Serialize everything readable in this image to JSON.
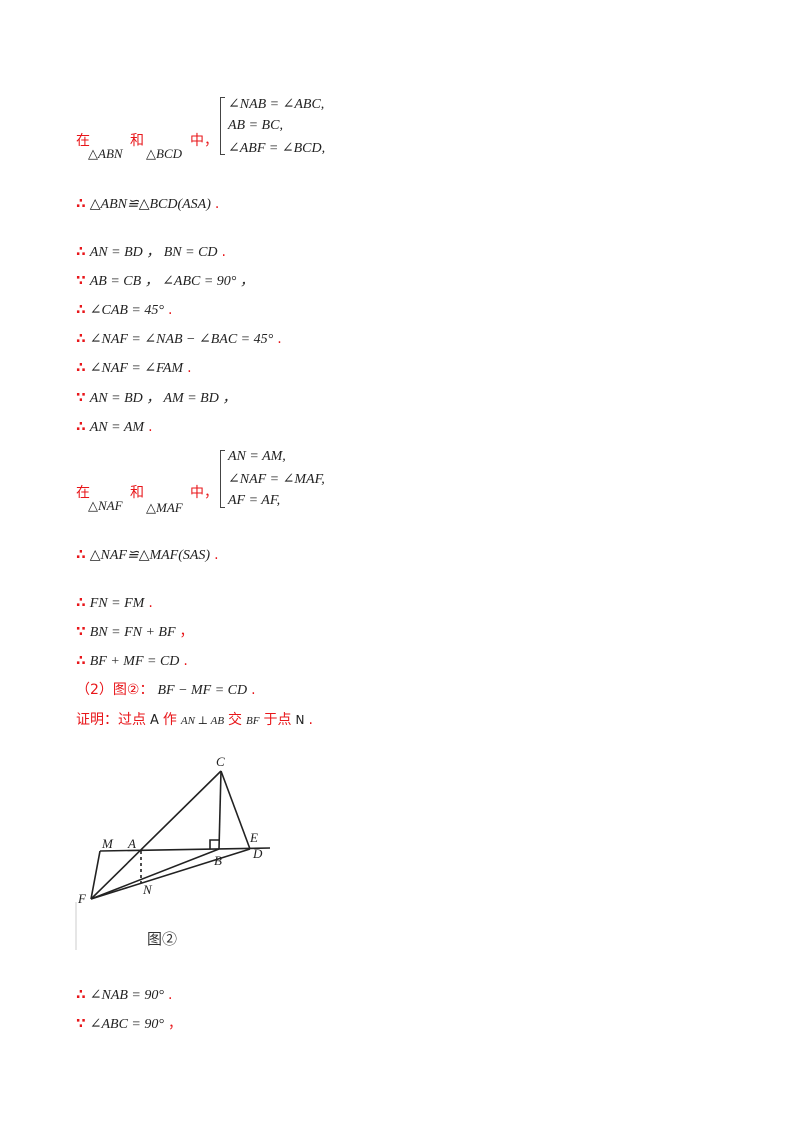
{
  "block1": {
    "zai": "在",
    "tri1": "△ABN",
    "he": "和",
    "tri2": "△BCD",
    "zhong": "中，",
    "cond1": "∠NAB = ∠ABC,",
    "cond2": "AB = BC,",
    "cond3": "∠ABF = ∠BCD,"
  },
  "concl1": {
    "sym": "∴",
    "text": "△ABN≌△BCD(ASA)",
    "end": "."
  },
  "lines1": [
    {
      "sym": "∴",
      "text": "AN = BD ，  BN = CD",
      "end": "."
    },
    {
      "sym": "∵",
      "text": "AB = CB ，  ∠ABC = 90° ，",
      "end": ""
    },
    {
      "sym": "∴",
      "text": "∠CAB = 45°",
      "end": "."
    },
    {
      "sym": "∴",
      "text": "∠NAF = ∠NAB − ∠BAC = 45°",
      "end": "."
    },
    {
      "sym": "∴",
      "text": "∠NAF = ∠FAM",
      "end": "."
    },
    {
      "sym": "∵",
      "text": "AN = BD ，  AM = BD ，",
      "end": ""
    },
    {
      "sym": "∴",
      "text": "AN = AM",
      "end": "."
    }
  ],
  "block2": {
    "zai": "在",
    "tri1": "△NAF",
    "he": "和",
    "tri2": "△MAF",
    "zhong": "中，",
    "cond1": "AN = AM,",
    "cond2": "∠NAF = ∠MAF,",
    "cond3": "AF = AF,"
  },
  "concl2": {
    "sym": "∴",
    "text": "△NAF≌△MAF(SAS)",
    "end": "."
  },
  "lines2": [
    {
      "sym": "∴",
      "text": "FN = FM",
      "end": "."
    },
    {
      "sym": "∵",
      "text": "BN = FN + BF",
      "end": "，"
    },
    {
      "sym": "∴",
      "text": "BF + MF = CD",
      "end": "."
    }
  ],
  "part2": {
    "label": "（2）图②：",
    "text": "BF − MF = CD",
    "end": "."
  },
  "proof": {
    "prefix": "证明：过点",
    "a": "A",
    "zuo": "作",
    "expr": "AN ⊥ AB",
    "jiao": "交",
    "bf": "BF",
    "yu": "于点",
    "n": "N",
    "end": "."
  },
  "figure": {
    "caption": "图②",
    "labels": {
      "C": "C",
      "M": "M",
      "A": "A",
      "E": "E",
      "B": "B",
      "D": "D",
      "F": "F",
      "N": "N"
    }
  },
  "lines3": [
    {
      "sym": "∴",
      "text": "∠NAB = 90°",
      "end": "."
    },
    {
      "sym": "∵",
      "text": "∠ABC = 90°",
      "end": "，"
    }
  ]
}
